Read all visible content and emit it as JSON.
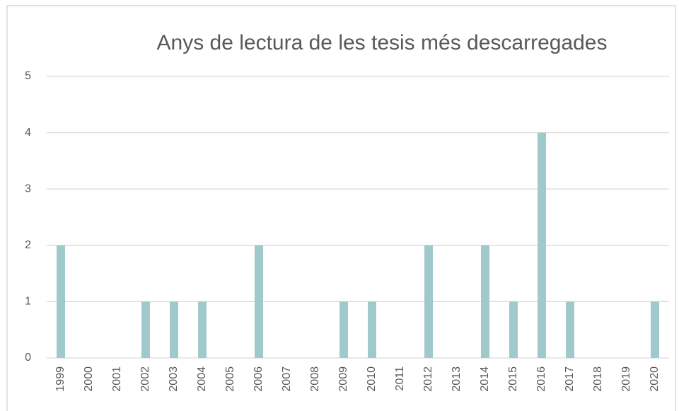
{
  "chart_data": {
    "type": "bar",
    "title": "Anys de lectura de les tesis més descarregades",
    "categories": [
      "1999",
      "2000",
      "2001",
      "2002",
      "2003",
      "2004",
      "2005",
      "2006",
      "2007",
      "2008",
      "2009",
      "2010",
      "2011",
      "2012",
      "2013",
      "2014",
      "2015",
      "2016",
      "2017",
      "2018",
      "2019",
      "2020"
    ],
    "values": [
      2,
      0,
      0,
      1,
      1,
      1,
      0,
      2,
      0,
      0,
      1,
      1,
      0,
      2,
      0,
      2,
      1,
      4,
      1,
      0,
      0,
      1
    ],
    "color": "#a0c9cc",
    "ylim": [
      0,
      5
    ],
    "yticks": [
      0,
      1,
      2,
      3,
      4,
      5
    ],
    "grid": true
  }
}
